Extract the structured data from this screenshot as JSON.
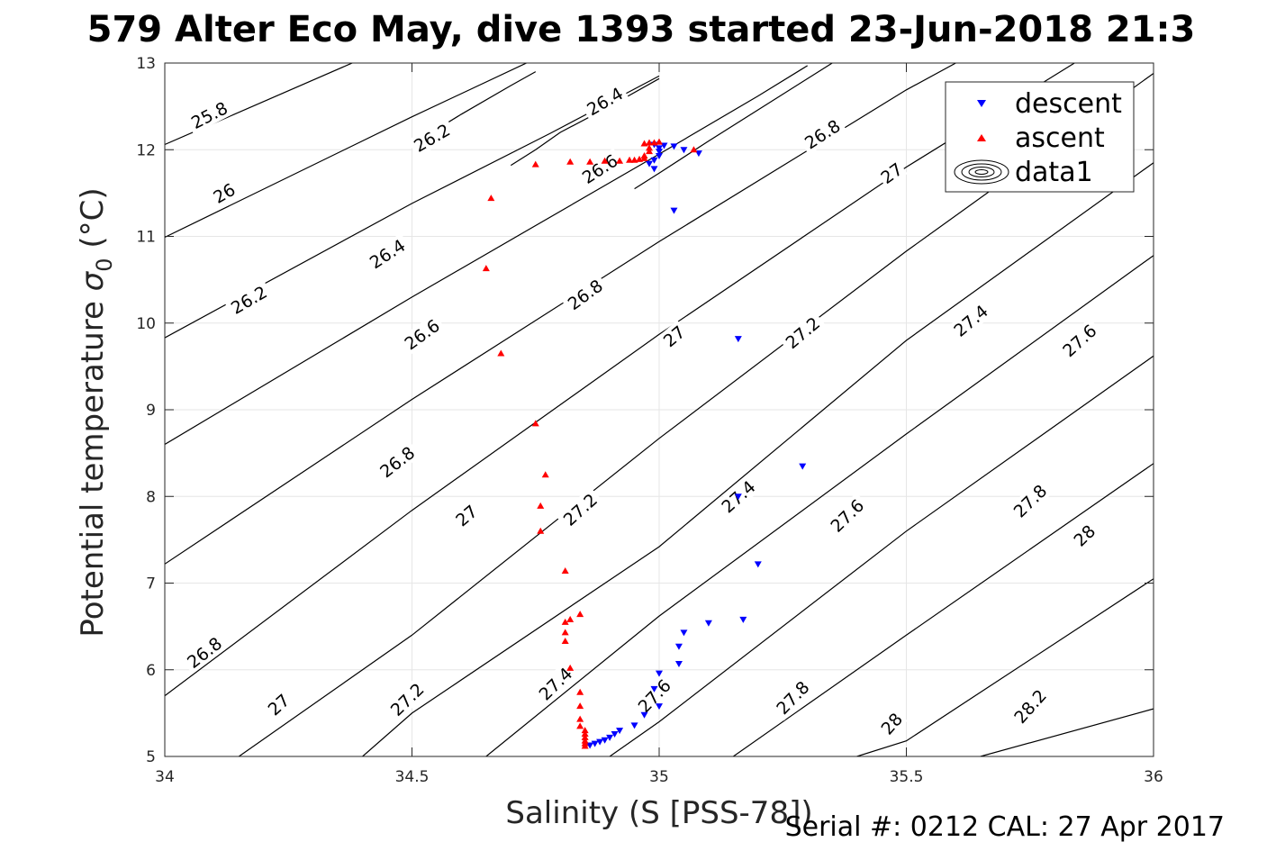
{
  "title": "579 Alter Eco May, dive 1393 started 23-Jun-2018 21:3",
  "footer": "Serial #: 0212  CAL: 27 Apr 2017",
  "chart_data": {
    "type": "scatter",
    "xlabel": "Salinity (S [PSS-78])",
    "ylabel_main": "Potential temperature ",
    "ylabel_sigma": "σ",
    "ylabel_sub": "0",
    "ylabel_unit": " (°C)",
    "xlim": [
      34,
      36
    ],
    "ylim": [
      5,
      13
    ],
    "x_ticks": [
      "34",
      "34.5",
      "35",
      "35.5",
      "36"
    ],
    "y_ticks": [
      "5",
      "6",
      "7",
      "8",
      "9",
      "10",
      "11",
      "12",
      "13"
    ],
    "grid": true,
    "legend_position": "top-right",
    "legend": [
      "descent",
      "ascent",
      "data1"
    ],
    "colors": {
      "descent": "#0000ff",
      "ascent": "#ff0000",
      "contour": "#000000"
    },
    "series": [
      {
        "name": "descent",
        "marker": "triangle-down",
        "points": [
          [
            34.86,
            5.13
          ],
          [
            34.87,
            5.15
          ],
          [
            34.88,
            5.17
          ],
          [
            34.89,
            5.19
          ],
          [
            34.9,
            5.22
          ],
          [
            34.91,
            5.26
          ],
          [
            34.92,
            5.3
          ],
          [
            34.95,
            5.36
          ],
          [
            34.97,
            5.48
          ],
          [
            34.99,
            5.78
          ],
          [
            35.0,
            5.58
          ],
          [
            35.0,
            5.96
          ],
          [
            35.04,
            6.07
          ],
          [
            35.04,
            6.27
          ],
          [
            35.05,
            6.43
          ],
          [
            35.1,
            6.54
          ],
          [
            35.17,
            6.58
          ],
          [
            35.2,
            7.22
          ],
          [
            35.16,
            8.0
          ],
          [
            35.29,
            8.35
          ],
          [
            35.16,
            9.82
          ],
          [
            35.03,
            11.3
          ],
          [
            35.08,
            11.96
          ],
          [
            35.05,
            12.0
          ],
          [
            35.03,
            12.04
          ],
          [
            35.01,
            12.05
          ],
          [
            35.0,
            11.98
          ],
          [
            35.0,
            11.93
          ],
          [
            34.99,
            11.88
          ],
          [
            34.99,
            11.78
          ],
          [
            34.98,
            11.84
          ],
          [
            35.0,
            12.02
          ],
          [
            34.99,
            12.06
          ]
        ]
      },
      {
        "name": "ascent",
        "marker": "triangle-up",
        "points": [
          [
            34.85,
            5.12
          ],
          [
            34.85,
            5.15
          ],
          [
            34.85,
            5.18
          ],
          [
            34.85,
            5.22
          ],
          [
            34.85,
            5.26
          ],
          [
            34.85,
            5.3
          ],
          [
            34.84,
            5.35
          ],
          [
            34.84,
            5.43
          ],
          [
            34.84,
            5.58
          ],
          [
            34.84,
            5.74
          ],
          [
            34.82,
            6.02
          ],
          [
            34.82,
            6.58
          ],
          [
            34.81,
            6.55
          ],
          [
            34.81,
            6.43
          ],
          [
            34.81,
            6.33
          ],
          [
            34.84,
            6.64
          ],
          [
            34.81,
            7.14
          ],
          [
            34.76,
            7.6
          ],
          [
            34.76,
            7.89
          ],
          [
            34.77,
            8.25
          ],
          [
            34.75,
            8.84
          ],
          [
            34.68,
            9.65
          ],
          [
            34.65,
            10.63
          ],
          [
            34.66,
            11.44
          ],
          [
            34.75,
            11.83
          ],
          [
            34.82,
            11.86
          ],
          [
            34.86,
            11.86
          ],
          [
            34.89,
            11.87
          ],
          [
            34.92,
            11.87
          ],
          [
            34.94,
            11.88
          ],
          [
            34.95,
            11.88
          ],
          [
            34.96,
            11.89
          ],
          [
            34.97,
            11.9
          ],
          [
            34.97,
            11.93
          ],
          [
            34.98,
            11.98
          ],
          [
            34.98,
            12.02
          ],
          [
            34.97,
            12.07
          ],
          [
            34.98,
            12.08
          ],
          [
            34.99,
            12.08
          ],
          [
            35.0,
            12.09
          ],
          [
            35.07,
            12.0
          ]
        ]
      }
    ],
    "contours": {
      "name": "data1",
      "levels": [
        25.8,
        26.0,
        26.2,
        26.4,
        26.6,
        26.8,
        27.0,
        27.2,
        27.4,
        27.6,
        27.8,
        28.0,
        28.2
      ],
      "lines": [
        {
          "level": "25.8",
          "points": [
            [
              34.0,
              12.06
            ],
            [
              34.5,
              13.3
            ]
          ]
        },
        {
          "level": "26",
          "points": [
            [
              34.0,
              10.99
            ],
            [
              34.5,
              12.38
            ],
            [
              34.75,
              13.05
            ]
          ]
        },
        {
          "level": "26.2",
          "points": [
            [
              34.0,
              9.83
            ],
            [
              34.5,
              11.38
            ],
            [
              34.78,
              12.19
            ],
            [
              35.0,
              12.85
            ]
          ]
        },
        {
          "level": "26.2",
          "points": [
            [
              34.5,
              12.06
            ],
            [
              34.6,
              12.41
            ],
            [
              34.7,
              12.74
            ],
            [
              34.75,
              12.9
            ]
          ]
        },
        {
          "level": "26.4",
          "points": [
            [
              34.0,
              8.6
            ],
            [
              34.5,
              10.3
            ],
            [
              35.0,
              11.95
            ],
            [
              35.2,
              12.62
            ],
            [
              35.3,
              12.97
            ]
          ]
        },
        {
          "level": "26.4",
          "points": [
            [
              34.7,
              11.82
            ],
            [
              34.75,
              12.0
            ],
            [
              34.8,
              12.2
            ],
            [
              34.9,
              12.5
            ],
            [
              35.0,
              12.82
            ]
          ]
        },
        {
          "level": "26.6",
          "points": [
            [
              34.0,
              7.22
            ],
            [
              34.5,
              9.12
            ],
            [
              35.0,
              10.94
            ],
            [
              35.5,
              12.69
            ],
            [
              35.6,
              13.0
            ]
          ]
        },
        {
          "level": "26.6",
          "points": [
            [
              34.95,
              11.55
            ],
            [
              35.0,
              11.73
            ],
            [
              35.1,
              12.1
            ],
            [
              35.2,
              12.46
            ],
            [
              35.35,
              13.0
            ]
          ]
        },
        {
          "level": "26.8",
          "points": [
            [
              34.0,
              5.7
            ],
            [
              34.5,
              7.84
            ],
            [
              35.0,
              9.87
            ],
            [
              35.5,
              11.8
            ],
            [
              35.84,
              13.0
            ]
          ]
        },
        {
          "level": "27",
          "points": [
            [
              34.15,
              5.0
            ],
            [
              34.5,
              6.4
            ],
            [
              35.0,
              8.67
            ],
            [
              35.5,
              10.83
            ],
            [
              36.0,
              12.88
            ]
          ]
        },
        {
          "level": "27.2",
          "points": [
            [
              34.4,
              5.0
            ],
            [
              34.5,
              5.5
            ],
            [
              35.0,
              7.42
            ],
            [
              35.5,
              9.8
            ],
            [
              36.0,
              11.85
            ]
          ]
        },
        {
          "level": "27.4",
          "points": [
            [
              34.65,
              5.0
            ],
            [
              35.0,
              6.62
            ],
            [
              35.5,
              8.72
            ],
            [
              36.0,
              10.78
            ]
          ]
        },
        {
          "level": "27.6",
          "points": [
            [
              34.9,
              5.0
            ],
            [
              35.0,
              5.4
            ],
            [
              35.5,
              7.6
            ],
            [
              36.0,
              9.62
            ]
          ]
        },
        {
          "level": "27.8",
          "points": [
            [
              35.15,
              5.0
            ],
            [
              35.5,
              6.4
            ],
            [
              36.0,
              8.38
            ]
          ]
        },
        {
          "level": "28",
          "points": [
            [
              35.4,
              5.0
            ],
            [
              35.5,
              5.18
            ],
            [
              36.0,
              7.05
            ]
          ]
        },
        {
          "level": "28.2",
          "points": [
            [
              35.65,
              5.0
            ],
            [
              36.0,
              5.55
            ]
          ]
        }
      ],
      "labels": [
        {
          "text": "25.8",
          "x": 34.09,
          "y": 12.4,
          "angle": -27
        },
        {
          "text": "26",
          "x": 34.12,
          "y": 11.5,
          "angle": -30
        },
        {
          "text": "26.2",
          "x": 34.17,
          "y": 10.27,
          "angle": -30
        },
        {
          "text": "26.2",
          "x": 34.54,
          "y": 12.14,
          "angle": -30
        },
        {
          "text": "26.4",
          "x": 34.45,
          "y": 10.8,
          "angle": -33
        },
        {
          "text": "26.4",
          "x": 34.89,
          "y": 12.56,
          "angle": -30
        },
        {
          "text": "26.6",
          "x": 34.52,
          "y": 9.87,
          "angle": -36
        },
        {
          "text": "26.6",
          "x": 34.88,
          "y": 11.78,
          "angle": -33
        },
        {
          "text": "26.8",
          "x": 34.85,
          "y": 10.33,
          "angle": -36
        },
        {
          "text": "26.8",
          "x": 35.33,
          "y": 12.18,
          "angle": -33
        },
        {
          "text": "26.8",
          "x": 34.47,
          "y": 8.4,
          "angle": -38
        },
        {
          "text": "26.8",
          "x": 34.08,
          "y": 6.2,
          "angle": -38
        },
        {
          "text": "27",
          "x": 35.03,
          "y": 9.85,
          "angle": -40
        },
        {
          "text": "27",
          "x": 35.47,
          "y": 11.73,
          "angle": -36
        },
        {
          "text": "27",
          "x": 34.61,
          "y": 7.78,
          "angle": -40
        },
        {
          "text": "27",
          "x": 34.23,
          "y": 5.6,
          "angle": -42
        },
        {
          "text": "27.2",
          "x": 35.29,
          "y": 9.89,
          "angle": -40
        },
        {
          "text": "27.2",
          "x": 34.84,
          "y": 7.85,
          "angle": -42
        },
        {
          "text": "27.2",
          "x": 34.49,
          "y": 5.66,
          "angle": -44
        },
        {
          "text": "27.4",
          "x": 35.63,
          "y": 10.03,
          "angle": -40
        },
        {
          "text": "27.4",
          "x": 35.16,
          "y": 8.0,
          "angle": -42
        },
        {
          "text": "27.4",
          "x": 34.79,
          "y": 5.84,
          "angle": -44
        },
        {
          "text": "27.6",
          "x": 35.85,
          "y": 9.8,
          "angle": -42
        },
        {
          "text": "27.6",
          "x": 35.38,
          "y": 7.78,
          "angle": -44
        },
        {
          "text": "27.6",
          "x": 34.99,
          "y": 5.7,
          "angle": -46
        },
        {
          "text": "27.8",
          "x": 35.75,
          "y": 7.95,
          "angle": -44
        },
        {
          "text": "27.8",
          "x": 35.27,
          "y": 5.68,
          "angle": -46
        },
        {
          "text": "28",
          "x": 35.86,
          "y": 7.55,
          "angle": -44
        },
        {
          "text": "28",
          "x": 35.47,
          "y": 5.38,
          "angle": -48
        },
        {
          "text": "28.2",
          "x": 35.75,
          "y": 5.58,
          "angle": -48
        }
      ]
    }
  }
}
